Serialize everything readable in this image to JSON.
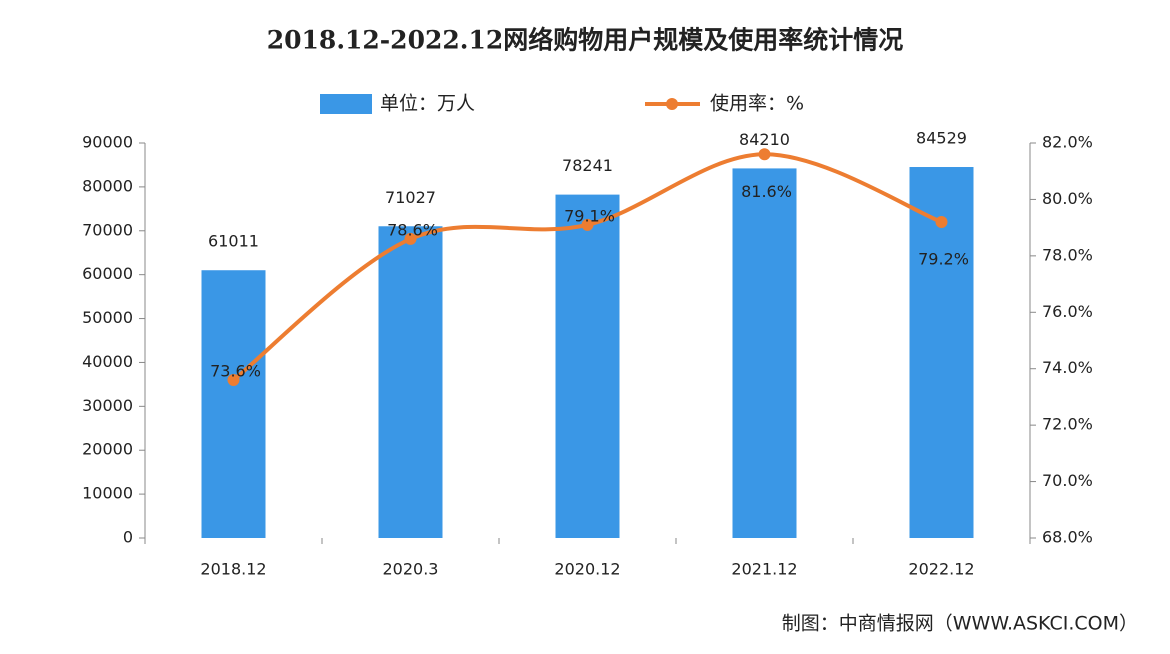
{
  "chart_data": {
    "type": "combo",
    "title": "2018.12-2022.12网络购物用户规模及使用率统计情况",
    "categories": [
      "2018.12",
      "2020.3",
      "2020.12",
      "2021.12",
      "2022.12"
    ],
    "series": [
      {
        "name": "单位：万人",
        "type": "bar",
        "color": "#3a97e6",
        "values": [
          61011,
          71027,
          78241,
          84210,
          84529
        ]
      },
      {
        "name": "使用率：%",
        "type": "line",
        "axis": "y2",
        "color": "#ed7d31",
        "values": [
          73.6,
          78.6,
          79.1,
          81.6,
          79.2
        ],
        "value_labels": [
          "73.6%",
          "78.6%",
          "79.1%",
          "81.6%",
          "79.2%"
        ]
      }
    ],
    "ylim": [
      0,
      90000
    ],
    "yticks": [
      0,
      10000,
      20000,
      30000,
      40000,
      50000,
      60000,
      70000,
      80000,
      90000
    ],
    "y2lim": [
      68,
      82
    ],
    "y2ticks": [
      {
        "value": 68,
        "label": "68.0%"
      },
      {
        "value": 70,
        "label": "70.0%"
      },
      {
        "value": 72,
        "label": "72.0%"
      },
      {
        "value": 74,
        "label": "74.0%"
      },
      {
        "value": 76,
        "label": "76.0%"
      },
      {
        "value": 78,
        "label": "78.0%"
      },
      {
        "value": 80,
        "label": "80.0%"
      },
      {
        "value": 82,
        "label": "82.0%"
      }
    ],
    "legend": "top",
    "source": "制图：中商情报网（WWW.ASKCI.COM）"
  }
}
